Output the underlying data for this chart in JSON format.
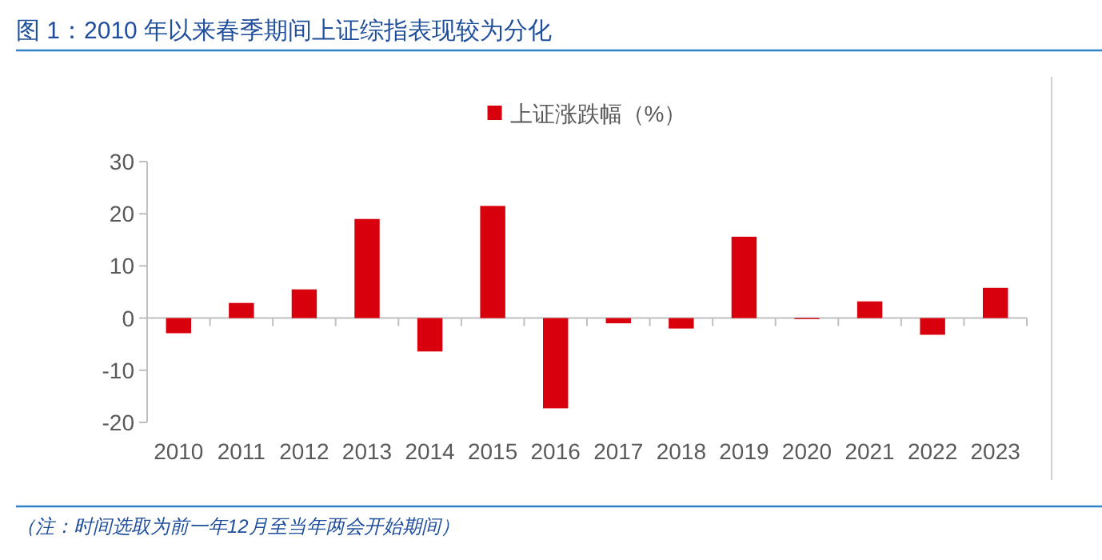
{
  "chart_data": {
    "type": "bar",
    "title": "图 1：2010 年以来春季期间上证综指表现较为分化",
    "categories": [
      "2010",
      "2011",
      "2012",
      "2013",
      "2014",
      "2015",
      "2016",
      "2017",
      "2018",
      "2019",
      "2020",
      "2021",
      "2022",
      "2023"
    ],
    "series": [
      {
        "name": "上证涨跌幅（%）",
        "color": "#d9000d",
        "values": [
          -2.9,
          2.9,
          5.5,
          19.0,
          -6.4,
          21.5,
          -17.3,
          -1.0,
          -2.0,
          15.6,
          -0.2,
          3.2,
          -3.2,
          5.8
        ]
      }
    ],
    "ylim": [
      -20,
      30
    ],
    "yticks": [
      -20,
      -10,
      0,
      10,
      20,
      30
    ],
    "legend": "top",
    "annotations": [
      "（注：时间选取为前一年12月至当年两会开始期间）"
    ]
  }
}
